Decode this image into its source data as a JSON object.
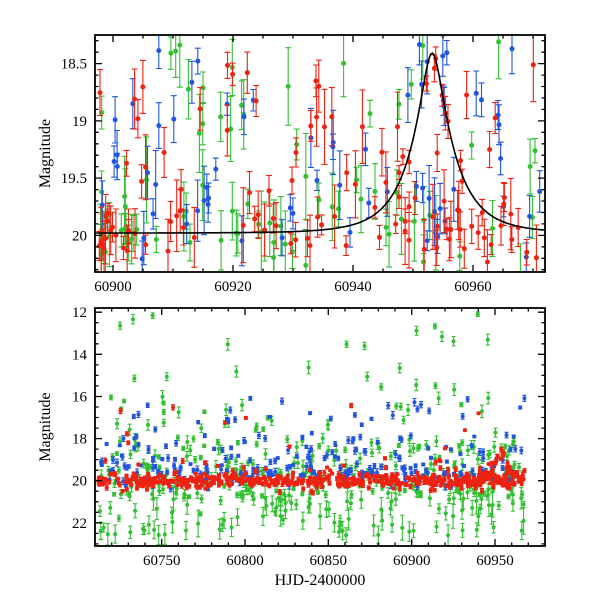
{
  "figure": {
    "background": "#ffffff",
    "axis_color": "#000000",
    "text_color": "#000000"
  },
  "chart_data": [
    {
      "id": "zoom-panel",
      "type": "scatter",
      "description": "Zoomed multi-band light curve around microlensing-like brightening peak",
      "xlabel": "",
      "ylabel": "Magnitude",
      "x_range": [
        60897,
        60972
      ],
      "y_range": [
        18.25,
        20.32
      ],
      "y_axis_inverted": true,
      "xticks": [
        60900,
        60920,
        60940,
        60960
      ],
      "xtick_labels": [
        "60900",
        "60920",
        "60940",
        "60960"
      ],
      "x_minor_tick_step": 5,
      "yticks": [
        18.5,
        19.0,
        19.5,
        20.0
      ],
      "ytick_labels": [
        "18.5",
        "19",
        "19.5",
        "20"
      ],
      "y_minor_tick_step": 0.1,
      "grid": false,
      "legend": false,
      "model_curve": {
        "kind": "paczynski_microlensing",
        "t0": 60953.2,
        "tE_days": 7.0,
        "u0": 0.24,
        "baseline_mag": 19.98,
        "peak_mag": 18.41,
        "color": "#000000",
        "draw": true
      },
      "series": [
        {
          "name": "green-band-photometry",
          "color": "#32c032",
          "marker_radius": 2.5,
          "err_cap_halfwidth": 3,
          "n": 70,
          "x_span": [
            60897.3,
            60971.5
          ],
          "mixture": [
            {
              "w": 0.5,
              "kind": "gauss",
              "mean": 19.98,
              "sigma": 0.15
            },
            {
              "w": 0.5,
              "kind": "uniform",
              "lo": 18.3,
              "hi": 19.9
            }
          ],
          "err_range": [
            0.1,
            0.38
          ],
          "clusters": [
            {
              "n": 12,
              "x_span": [
                60897.3,
                60904
              ],
              "kind": "gauss",
              "mean": 20.0,
              "sigma": 0.12,
              "err_range": [
                0.1,
                0.3
              ]
            }
          ]
        },
        {
          "name": "blue-band-photometry",
          "color": "#2255dd",
          "marker_radius": 2.5,
          "err_cap_halfwidth": 3,
          "n": 60,
          "x_span": [
            60897.3,
            60971.5
          ],
          "mixture": [
            {
              "w": 0.45,
              "kind": "gauss",
              "mean": 19.9,
              "sigma": 0.18
            },
            {
              "w": 0.55,
              "kind": "uniform",
              "lo": 18.35,
              "hi": 19.85
            }
          ],
          "err_range": [
            0.08,
            0.3
          ],
          "clusters": [
            {
              "n": 6,
              "x_span": [
                60950,
                60962
              ],
              "kind": "uniform",
              "lo": 18.3,
              "hi": 19.0,
              "err_range": [
                0.08,
                0.2
              ]
            }
          ]
        },
        {
          "name": "red-band-photometry",
          "color": "#ee2211",
          "marker_radius": 2.5,
          "err_cap_halfwidth": 3,
          "n": 85,
          "x_span": [
            60897.3,
            60971.5
          ],
          "mixture": [
            {
              "w": 0.55,
              "kind": "gauss",
              "mean": 19.97,
              "sigma": 0.14
            },
            {
              "w": 0.45,
              "kind": "uniform",
              "lo": 18.5,
              "hi": 19.9
            }
          ],
          "err_range": [
            0.08,
            0.33
          ],
          "clusters": [
            {
              "n": 14,
              "x_span": [
                60897.3,
                60904
              ],
              "kind": "gauss",
              "mean": 20.02,
              "sigma": 0.12,
              "err_range": [
                0.08,
                0.25
              ]
            },
            {
              "n": 8,
              "x_span": [
                60956,
                60968
              ],
              "kind": "gauss",
              "mean": 19.9,
              "sigma": 0.15,
              "err_range": [
                0.08,
                0.2
              ]
            }
          ],
          "track_model": {
            "n": 12,
            "x_span": [
              60947,
              60959
            ],
            "sigma": 0.1,
            "err_range": [
              0.06,
              0.16
            ]
          }
        }
      ]
    },
    {
      "id": "full-panel",
      "type": "scatter",
      "description": "Full-baseline multi-band light curve, dense red band near magnitude 20 with scattered green/blue outliers",
      "xlabel": "HJD-2400000",
      "ylabel": "Magnitude",
      "x_range": [
        60710,
        60980
      ],
      "y_range": [
        11.8,
        23.1
      ],
      "y_axis_inverted": true,
      "xticks": [
        60750,
        60800,
        60850,
        60900,
        60950
      ],
      "xtick_labels": [
        "60750",
        "60800",
        "60850",
        "60900",
        "60950"
      ],
      "x_minor_tick_step": 10,
      "yticks": [
        12,
        14,
        16,
        18,
        20,
        22
      ],
      "ytick_labels": [
        "12",
        "14",
        "16",
        "18",
        "20",
        "22"
      ],
      "y_minor_tick_step": 0.5,
      "grid": false,
      "legend": false,
      "model_curve": {
        "kind": "paczynski_microlensing",
        "t0": 60953.2,
        "tE_days": 7.0,
        "u0": 0.24,
        "baseline_mag": 19.98,
        "peak_mag": 18.41,
        "color": "#000000",
        "draw": false
      },
      "series": [
        {
          "name": "green-band-photometry",
          "color": "#32c032",
          "marker_radius": 2.0,
          "err_cap_halfwidth": 2,
          "n": 400,
          "x_span": [
            60712,
            60968
          ],
          "mixture": [
            {
              "w": 0.38,
              "kind": "gauss",
              "mean": 20.3,
              "sigma": 0.45
            },
            {
              "w": 0.25,
              "kind": "uniform",
              "lo": 18.0,
              "hi": 19.8
            },
            {
              "w": 0.22,
              "kind": "uniform",
              "lo": 20.6,
              "hi": 22.6
            },
            {
              "w": 0.11,
              "kind": "uniform",
              "lo": 15.0,
              "hi": 18.0
            },
            {
              "w": 0.04,
              "kind": "uniform",
              "lo": 12.0,
              "hi": 15.0
            }
          ],
          "err_range": [
            0.08,
            0.3
          ],
          "extra_err_if_fainter_than": 20.8,
          "extra_err_max": 0.35
        },
        {
          "name": "blue-band-photometry",
          "color": "#2255dd",
          "marker_radius": 2.0,
          "err_cap_halfwidth": 2,
          "n": 270,
          "x_span": [
            60712,
            60968
          ],
          "mixture": [
            {
              "w": 0.62,
              "kind": "gauss",
              "mean": 19.65,
              "sigma": 0.3
            },
            {
              "w": 0.28,
              "kind": "uniform",
              "lo": 17.8,
              "hi": 19.3
            },
            {
              "w": 0.1,
              "kind": "uniform",
              "lo": 16.0,
              "hi": 17.8
            }
          ],
          "err_range": [
            0.05,
            0.18
          ]
        },
        {
          "name": "red-band-photometry",
          "color": "#ee2211",
          "marker_radius": 2.1,
          "err_cap_halfwidth": 2,
          "n": 520,
          "x_span": [
            60712,
            60968
          ],
          "mixture": [
            {
              "w": 0.9,
              "kind": "gauss",
              "mean": 20.0,
              "sigma": 0.17
            },
            {
              "w": 0.07,
              "kind": "gauss",
              "mean": 19.5,
              "sigma": 0.3
            },
            {
              "w": 0.03,
              "kind": "uniform",
              "lo": 16.3,
              "hi": 18.5
            }
          ],
          "err_range": [
            0.04,
            0.13
          ],
          "track_model": {
            "n": 42,
            "x_span": [
              60941,
              60967
            ],
            "sigma": 0.12,
            "err_range": [
              0.05,
              0.12
            ]
          }
        }
      ]
    }
  ]
}
